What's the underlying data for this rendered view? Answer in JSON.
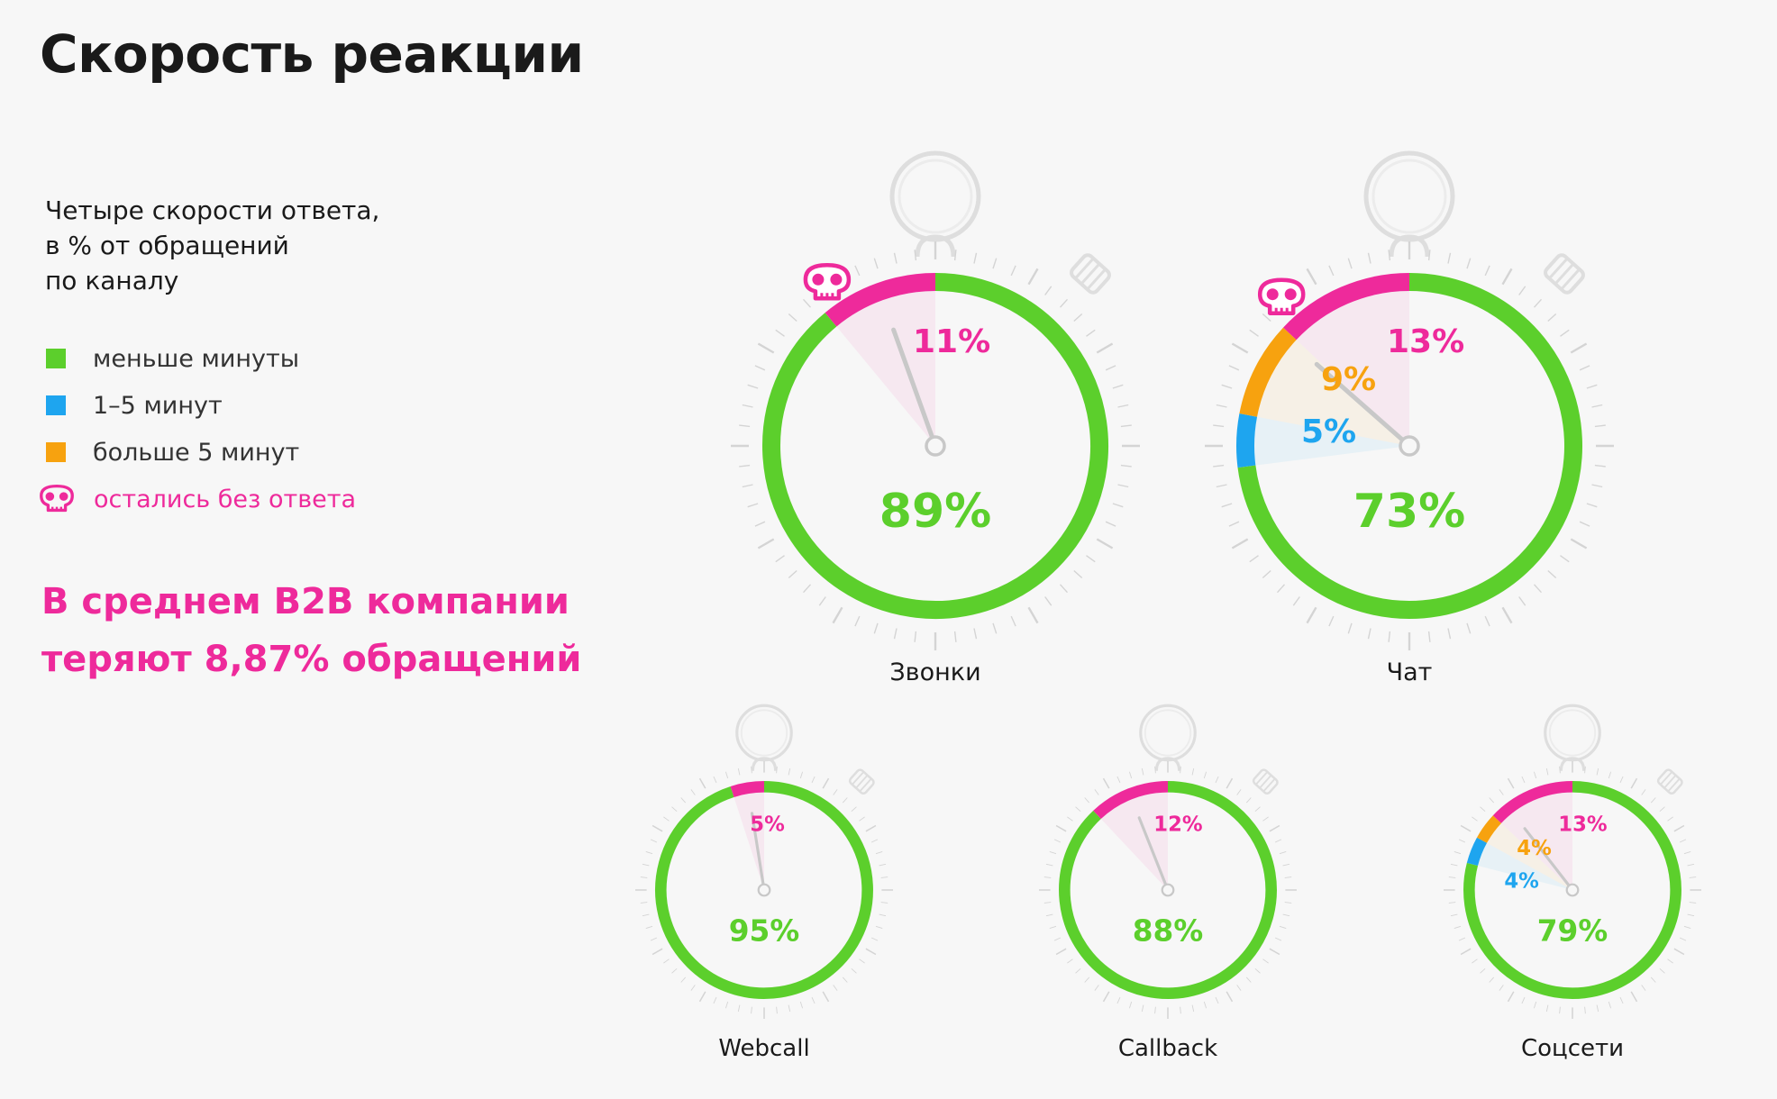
{
  "title": "Скорость реакции",
  "subtitle_lines": [
    "Четыре скорости ответа,",
    "в % от обращений",
    "по каналу"
  ],
  "legend": [
    {
      "label": "меньше минуты",
      "color": "#5ccf2c"
    },
    {
      "label": "1–5 минут",
      "color": "#1ea5ef"
    },
    {
      "label": "больше 5 минут",
      "color": "#f7a20f"
    },
    {
      "label": "остались без ответа",
      "color": "#ee2a9b",
      "icon": "skull-icon"
    }
  ],
  "highlight_lines": [
    "В среднем B2B компании",
    "теряют 8,87% обращений"
  ],
  "chart_data": {
    "type": "pie",
    "categories": [
      "меньше минуты",
      "1–5 минут",
      "больше 5 минут",
      "остались без ответа"
    ],
    "colors": [
      "#5ccf2c",
      "#1ea5ef",
      "#f7a20f",
      "#ee2a9b"
    ],
    "charts": [
      {
        "channel": "Звонки",
        "values": [
          89,
          0,
          0,
          11
        ],
        "labels": [
          "89%",
          "",
          "",
          "11%"
        ]
      },
      {
        "channel": "Чат",
        "values": [
          73,
          5,
          9,
          13
        ],
        "labels": [
          "73%",
          "5%",
          "9%",
          "13%"
        ]
      },
      {
        "channel": "Webcall",
        "values": [
          95,
          0,
          0,
          5
        ],
        "labels": [
          "95%",
          "",
          "",
          "5%"
        ]
      },
      {
        "channel": "Callback",
        "values": [
          88,
          0,
          0,
          12
        ],
        "labels": [
          "88%",
          "",
          "",
          "12%"
        ]
      },
      {
        "channel": "Соцсети",
        "values": [
          79,
          4,
          4,
          13
        ],
        "labels": [
          "79%",
          "4%",
          "4%",
          "13%"
        ]
      }
    ]
  }
}
